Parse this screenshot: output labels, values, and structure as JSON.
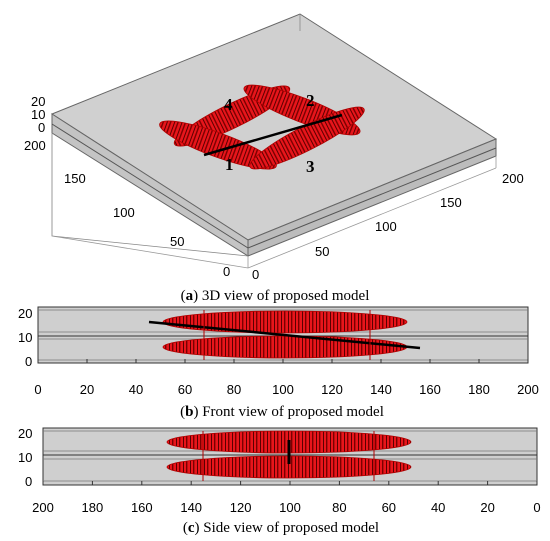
{
  "panels": {
    "a": {
      "caption_letter": "a",
      "caption_text": " 3D view of proposed model",
      "z_ticks": [
        "20",
        "10",
        "0"
      ],
      "y_ticks": [
        "200",
        "150",
        "100",
        "50",
        "0"
      ],
      "x_ticks": [
        "0",
        "50",
        "100",
        "150",
        "200"
      ],
      "fracture_labels": [
        "1",
        "2",
        "3",
        "4"
      ]
    },
    "b": {
      "caption_letter": "b",
      "caption_text": " Front view of proposed model",
      "y_ticks": [
        "20",
        "10",
        "0"
      ],
      "x_ticks": [
        "0",
        "20",
        "40",
        "60",
        "80",
        "100",
        "120",
        "140",
        "160",
        "180",
        "200"
      ]
    },
    "c": {
      "caption_letter": "c",
      "caption_text": " Side view of proposed model",
      "y_ticks": [
        "20",
        "10",
        "0"
      ],
      "x_ticks": [
        "200",
        "180",
        "160",
        "140",
        "120",
        "100",
        "80",
        "60",
        "40",
        "20",
        "0"
      ]
    }
  },
  "colors": {
    "fracture_fill": "#e8151b",
    "fracture_stripe": "#6b0000",
    "box_face": "#c8c8c8",
    "box_face_light": "#d4d4d4",
    "well": "#000000"
  }
}
